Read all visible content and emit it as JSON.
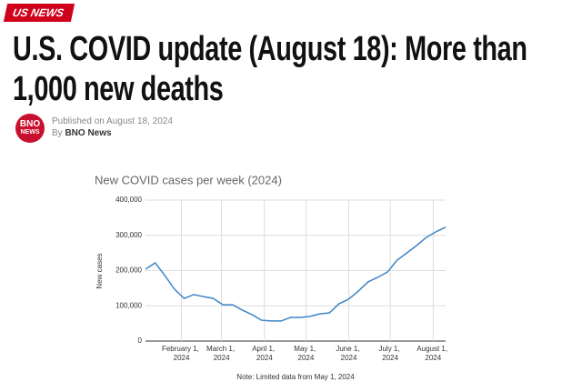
{
  "header": {
    "badge": "US NEWS",
    "title": "U.S. COVID update (August 18): More than 1,000 new deaths",
    "logo_top": "BNO",
    "logo_bottom": "NEWS",
    "published": "Published on August 18, 2024",
    "byline": "By",
    "author": "BNO News"
  },
  "chart_data": {
    "type": "line",
    "title": "New COVID cases per week (2024)",
    "y_label": "New cases",
    "note": "Note: Limited data from May 1, 2024",
    "x": [
      "2024-01-06",
      "2024-01-13",
      "2024-01-20",
      "2024-01-27",
      "2024-02-03",
      "2024-02-10",
      "2024-02-17",
      "2024-02-24",
      "2024-03-02",
      "2024-03-09",
      "2024-03-16",
      "2024-03-23",
      "2024-03-30",
      "2024-04-06",
      "2024-04-13",
      "2024-04-20",
      "2024-04-27",
      "2024-05-04",
      "2024-05-11",
      "2024-05-18",
      "2024-05-25",
      "2024-06-01",
      "2024-06-08",
      "2024-06-15",
      "2024-06-22",
      "2024-06-29",
      "2024-07-06",
      "2024-07-13",
      "2024-07-20",
      "2024-07-27",
      "2024-08-03",
      "2024-08-10"
    ],
    "series": [
      {
        "name": "New cases",
        "color": "#3d85c6",
        "values": [
          204000,
          222000,
          186000,
          147000,
          121000,
          132000,
          126000,
          121000,
          103000,
          103000,
          88000,
          75000,
          59000,
          57000,
          57000,
          67000,
          67000,
          70000,
          77000,
          80000,
          106000,
          119000,
          142000,
          168000,
          181000,
          196000,
          230000,
          250000,
          271000,
          294000,
          310000,
          323000
        ]
      }
    ],
    "xlim": [
      "2024-01-06",
      "2024-08-10"
    ],
    "xticks": [
      {
        "value": "2024-02-01",
        "label": "February 1, 2024"
      },
      {
        "value": "2024-03-01",
        "label": "March 1, 2024"
      },
      {
        "value": "2024-04-01",
        "label": "April 1, 2024"
      },
      {
        "value": "2024-05-01",
        "label": "May 1, 2024"
      },
      {
        "value": "2024-06-01",
        "label": "June 1, 2024"
      },
      {
        "value": "2024-07-01",
        "label": "July 1, 2024"
      },
      {
        "value": "2024-08-01",
        "label": "August 1, 2024"
      }
    ],
    "ylim": [
      0,
      400000
    ],
    "yticks": [
      0,
      {
        "value": 100000,
        "label": "100,000"
      },
      {
        "value": 200000,
        "label": "200,000"
      },
      {
        "value": 300000,
        "label": "300,000"
      },
      {
        "value": 400000,
        "label": "400,000"
      }
    ],
    "grid": true
  }
}
